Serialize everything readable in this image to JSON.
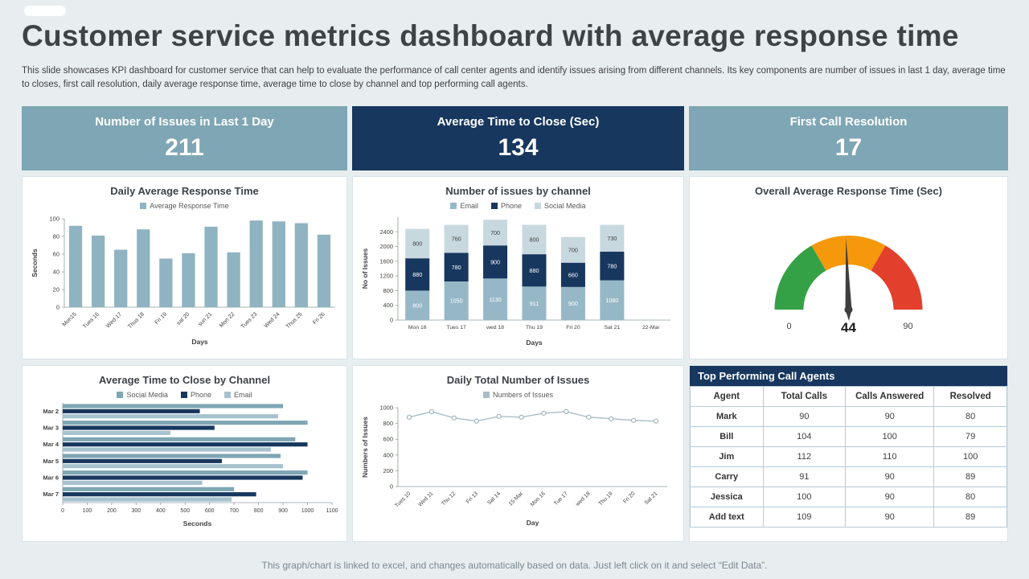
{
  "page": {
    "title": "Customer service metrics dashboard with average response time",
    "subtitle": "This slide showcases KPI dashboard for customer service that can help to evaluate the performance of call center agents and identify issues arising from different channels. Its key components are number of issues in last 1 day, average time to closes, first call resolution, daily average response time, average time to close by channel and top performing call agents.",
    "footer": "This graph/chart is linked to excel,  and changes automatically based on data. Just left click on it and select “Edit Data”."
  },
  "colors": {
    "background": "#e8eef0",
    "kpi_teal": "#7fa6b4",
    "kpi_navy": "#17375e",
    "bar_teal": "#8fb3c0",
    "gauge_green": "#35a146",
    "gauge_orange": "#f5980b",
    "gauge_red": "#e2402c"
  },
  "kpis": [
    {
      "label": "Number of Issues in Last 1 Day",
      "value": "211"
    },
    {
      "label": "Average Time to Close (Sec)",
      "value": "134"
    },
    {
      "label": "First Call Resolution",
      "value": "17"
    }
  ],
  "chart_data": [
    {
      "id": "daily_avg_response",
      "type": "bar",
      "title": "Daily Average Response Time",
      "legend": [
        {
          "label": "Average Response Time",
          "color": "#8fb3c0"
        }
      ],
      "color": "#8fb3c0",
      "categories": [
        "Mon15",
        "Tues 16",
        "Wed 17",
        "Thus 18",
        "Fri 19",
        "sat 20",
        "sun 21",
        "Mon 22",
        "Tues 23",
        "Wed 24",
        "Thus 25",
        "Fri 26"
      ],
      "values": [
        92,
        81,
        65,
        88,
        55,
        61,
        91,
        62,
        98,
        97,
        95,
        82
      ],
      "xlabel": "Days",
      "ylabel": "Seconds",
      "ylim": [
        0,
        100
      ],
      "yticks": [
        0,
        20,
        40,
        60,
        80,
        100
      ]
    },
    {
      "id": "issues_by_channel",
      "type": "stacked",
      "title": "Number of issues by channel",
      "categories": [
        "Mon 16",
        "Tues 17",
        "wed 18",
        "Thu 19",
        "Fri 20",
        "Sat 21",
        "22-Mar"
      ],
      "series": [
        {
          "name": "Email",
          "color": "#96b8c6",
          "label_color": "#ffffff",
          "values": [
            800,
            1050,
            1130,
            911,
            900,
            1080,
            null
          ]
        },
        {
          "name": "Phone",
          "color": "#17375e",
          "label_color": "#ffffff",
          "values": [
            880,
            780,
            900,
            880,
            660,
            780,
            null
          ]
        },
        {
          "name": "Social Media",
          "color": "#c8d8df",
          "label_color": "#404040",
          "values": [
            800,
            760,
            700,
            800,
            700,
            730,
            null
          ]
        }
      ],
      "xlabel": "Days",
      "ylabel": "No of Issues",
      "ylim": [
        0,
        2400
      ],
      "scale_max": 2800,
      "yticks": [
        0,
        400,
        800,
        1200,
        1600,
        2000,
        2400
      ]
    },
    {
      "id": "overall_avg_response",
      "type": "gauge",
      "title": "Overall Average Response Time (Sec)",
      "min": 0,
      "max": 90,
      "value": 44,
      "segment_colors": [
        "#35a146",
        "#f5980b",
        "#e2402c"
      ]
    },
    {
      "id": "avg_time_by_channel",
      "type": "hbar",
      "title": "Average Time to Close by Channel",
      "categories": [
        "Mar 2",
        "Mar 3",
        "Mar 4",
        "Mar 5",
        "Mar 6",
        "Mar 7"
      ],
      "series": [
        {
          "name": "Social Media",
          "color": "#7fa6b4",
          "values": [
            900,
            1000,
            950,
            890,
            1000,
            700
          ]
        },
        {
          "name": "Phone",
          "color": "#17375e",
          "values": [
            560,
            620,
            1000,
            650,
            980,
            790
          ]
        },
        {
          "name": "Email",
          "color": "#a6c2ce",
          "values": [
            880,
            440,
            850,
            900,
            570,
            690
          ]
        }
      ],
      "xlabel": "Seconds",
      "xlim": [
        0,
        1100
      ],
      "xticks": [
        0,
        100,
        200,
        300,
        400,
        500,
        600,
        700,
        800,
        900,
        1000,
        1100
      ]
    },
    {
      "id": "daily_total_issues",
      "type": "line",
      "title": "Daily Total Number of Issues",
      "legend": [
        {
          "label": "Numbers of Issues",
          "color": "#a9bec6"
        }
      ],
      "color": "#a9bec6",
      "marker_stroke": "#93abb4",
      "categories": [
        "Tues 10",
        "Wed 11",
        "Thu 12",
        "Fri 13",
        "Sat 14",
        "15-Mar",
        "Mon 16",
        "Tue 17",
        "wed 18",
        "Thu 19",
        "Fri 20",
        "Sat 21"
      ],
      "values": [
        880,
        950,
        870,
        830,
        890,
        880,
        930,
        950,
        880,
        860,
        840,
        830
      ],
      "xlabel": "Day",
      "ylabel": "Numbers of Issues",
      "ylim": [
        0,
        1000
      ],
      "yticks": [
        0,
        200,
        400,
        600,
        800,
        1000
      ]
    }
  ],
  "table": {
    "title": "Top Performing Call Agents",
    "headers": [
      "Agent",
      "Total Calls",
      "Calls Answered",
      "Resolved"
    ],
    "rows": [
      [
        "Mark",
        "90",
        "90",
        "80"
      ],
      [
        "Bill",
        "104",
        "100",
        "79"
      ],
      [
        "Jim",
        "112",
        "110",
        "100"
      ],
      [
        "Carry",
        "91",
        "90",
        "89"
      ],
      [
        "Jessica",
        "100",
        "90",
        "80"
      ],
      [
        "Add  text",
        "109",
        "90",
        "89"
      ]
    ]
  }
}
